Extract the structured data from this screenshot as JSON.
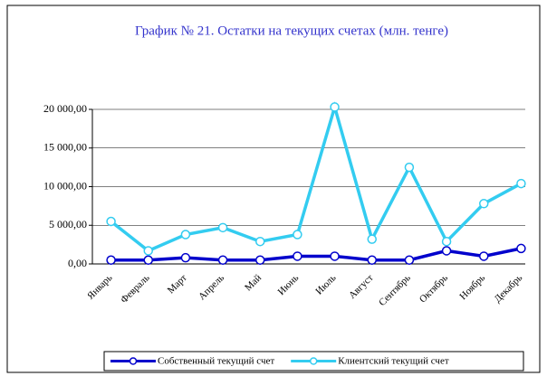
{
  "chart_data": {
    "type": "line",
    "title": "График № 21. Остатки на текущих счетах (млн. тенге)",
    "categories": [
      "Январь",
      "Февраль",
      "Март",
      "Апрель",
      "Май",
      "Июнь",
      "Июль",
      "Август",
      "Сентябрь",
      "Октябрь",
      "Ноябрь",
      "Декабрь"
    ],
    "series": [
      {
        "name": "Собственный текущий счет",
        "color": "#0000cc",
        "values": [
          500,
          500,
          800,
          500,
          500,
          1000,
          1000,
          500,
          500,
          1700,
          1000,
          2000
        ]
      },
      {
        "name": "Клиентский текущий счет",
        "color": "#33ccf0",
        "values": [
          5500,
          1700,
          3800,
          4700,
          2900,
          3800,
          20300,
          3200,
          12500,
          2900,
          7800,
          10400
        ]
      }
    ],
    "ylim": [
      0,
      20000
    ],
    "yticks": [
      {
        "value": 0,
        "label": "0,00"
      },
      {
        "value": 5000,
        "label": "5 000,00"
      },
      {
        "value": 10000,
        "label": "10 000,00"
      },
      {
        "value": 15000,
        "label": "15 000,00"
      },
      {
        "value": 20000,
        "label": "20 000,00"
      }
    ],
    "grid": true
  }
}
